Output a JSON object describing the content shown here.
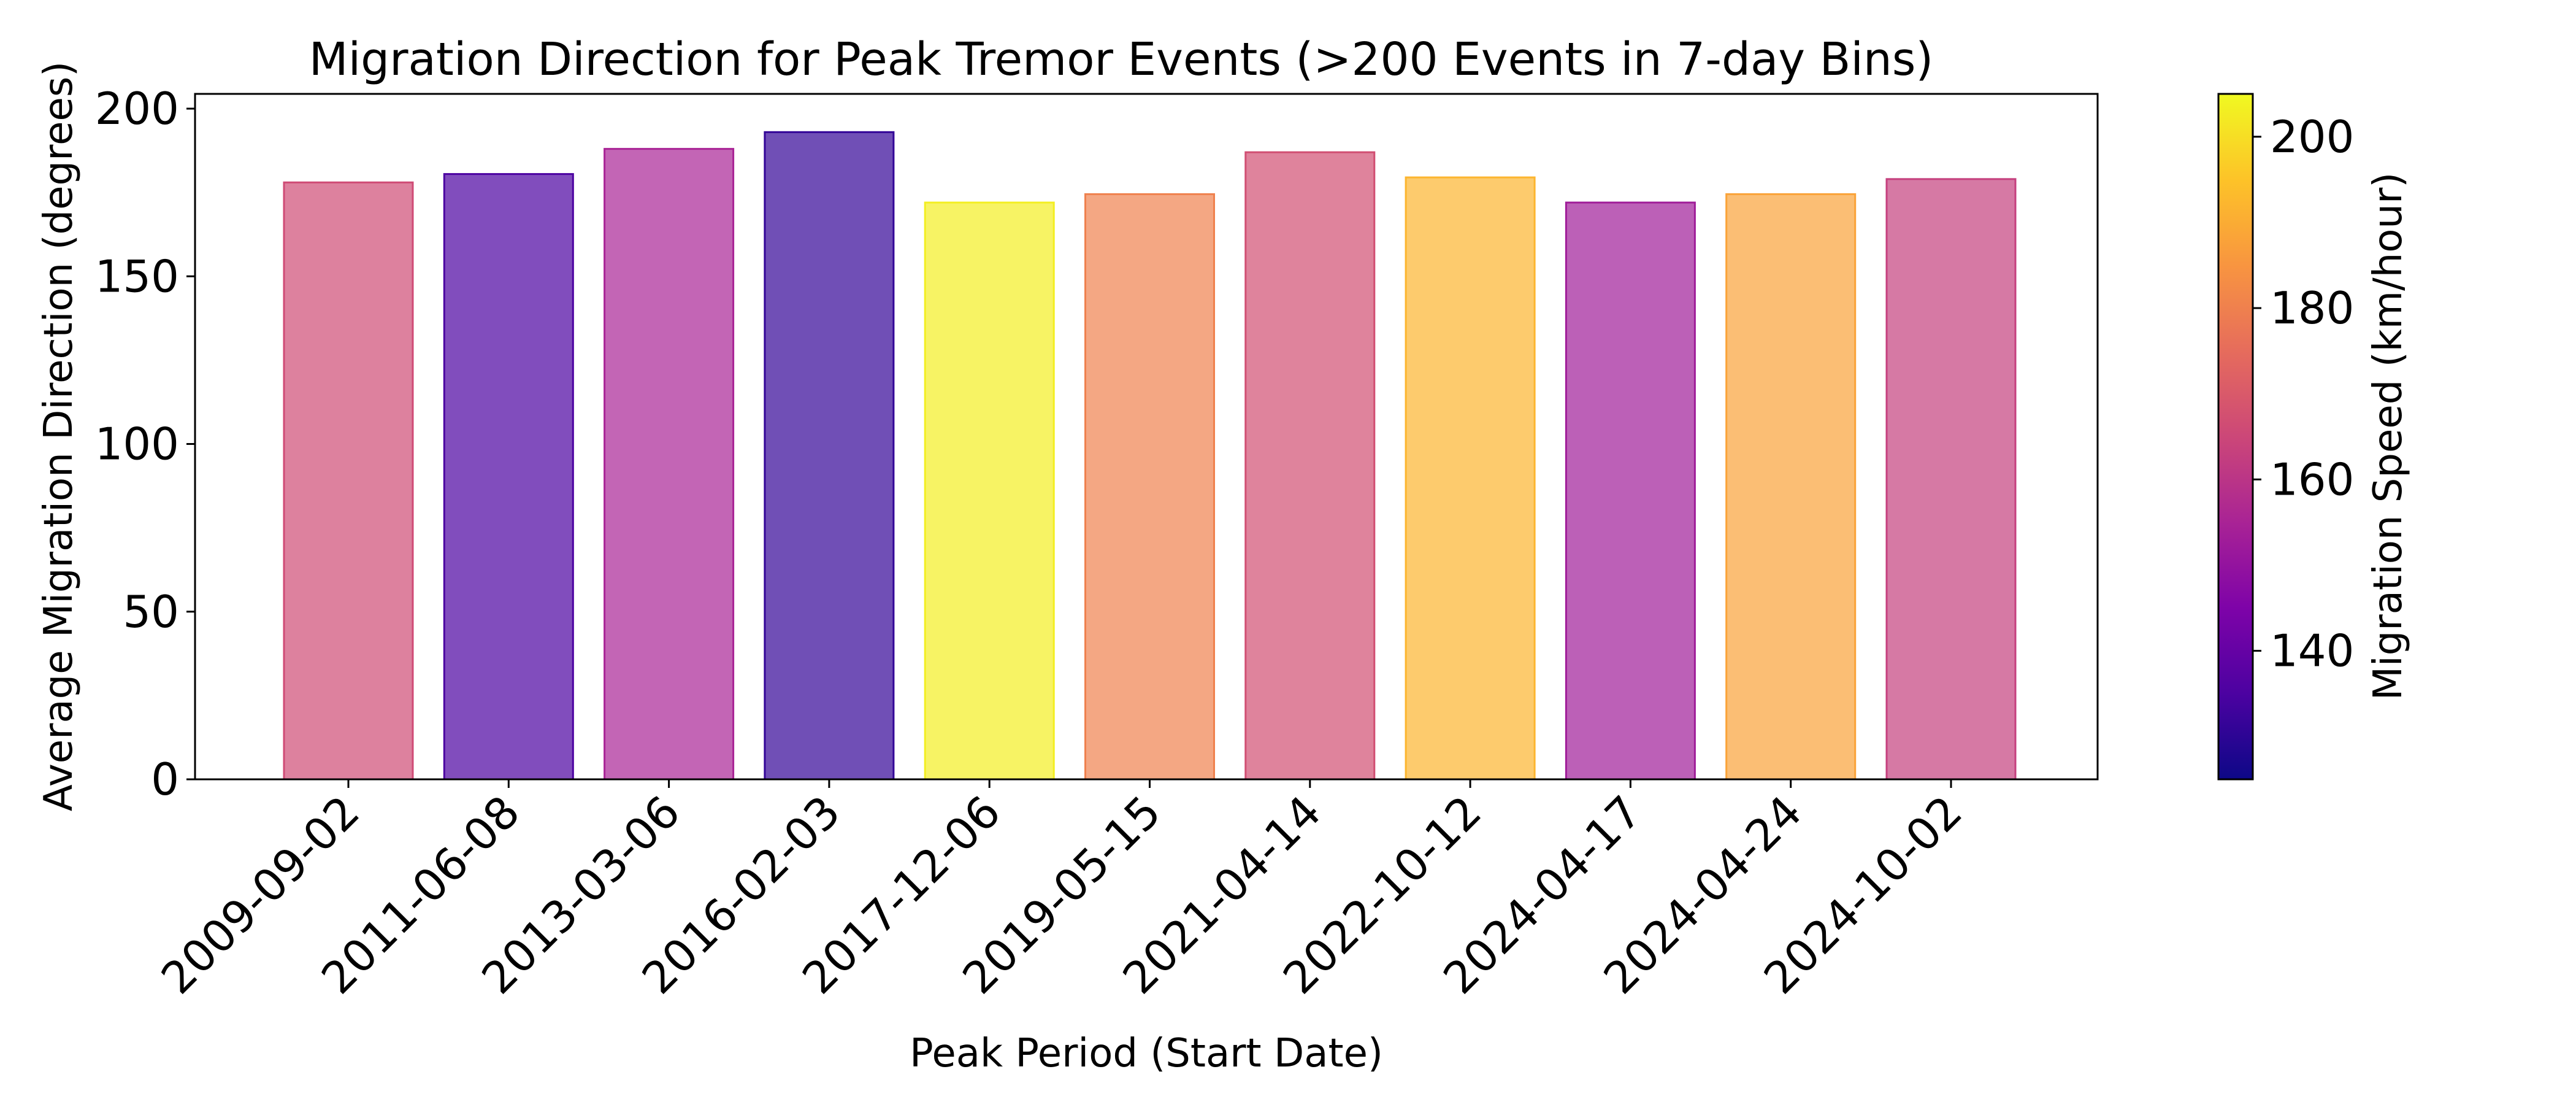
{
  "chart_data": {
    "type": "bar",
    "title": "Migration Direction for Peak Tremor Events (>200 Events in 7-day Bins)",
    "xlabel": "Peak Period (Start Date)",
    "ylabel": "Average Migration Direction (degrees)",
    "ylim": [
      0,
      200
    ],
    "yticks": [
      "0",
      "50",
      "100",
      "150",
      "200"
    ],
    "categories": [
      "2009-09-02",
      "2011-06-08",
      "2013-03-06",
      "2016-02-03",
      "2017-12-06",
      "2019-05-15",
      "2021-04-14",
      "2022-10-12",
      "2024-04-17",
      "2024-04-24",
      "2024-10-02"
    ],
    "values": [
      178,
      180.5,
      188,
      193,
      172,
      174.5,
      187,
      179.5,
      172,
      174.5,
      179
    ],
    "color_values": [
      166,
      135,
      155,
      131,
      203,
      180,
      167,
      192,
      153,
      188,
      163
    ],
    "colorbar": {
      "label": "Migration Speed (km/hour)",
      "range": [
        125,
        205
      ],
      "ticks": [
        "140",
        "160",
        "180",
        "200"
      ],
      "colormap": "plasma"
    },
    "grid": false,
    "legend": "none"
  }
}
